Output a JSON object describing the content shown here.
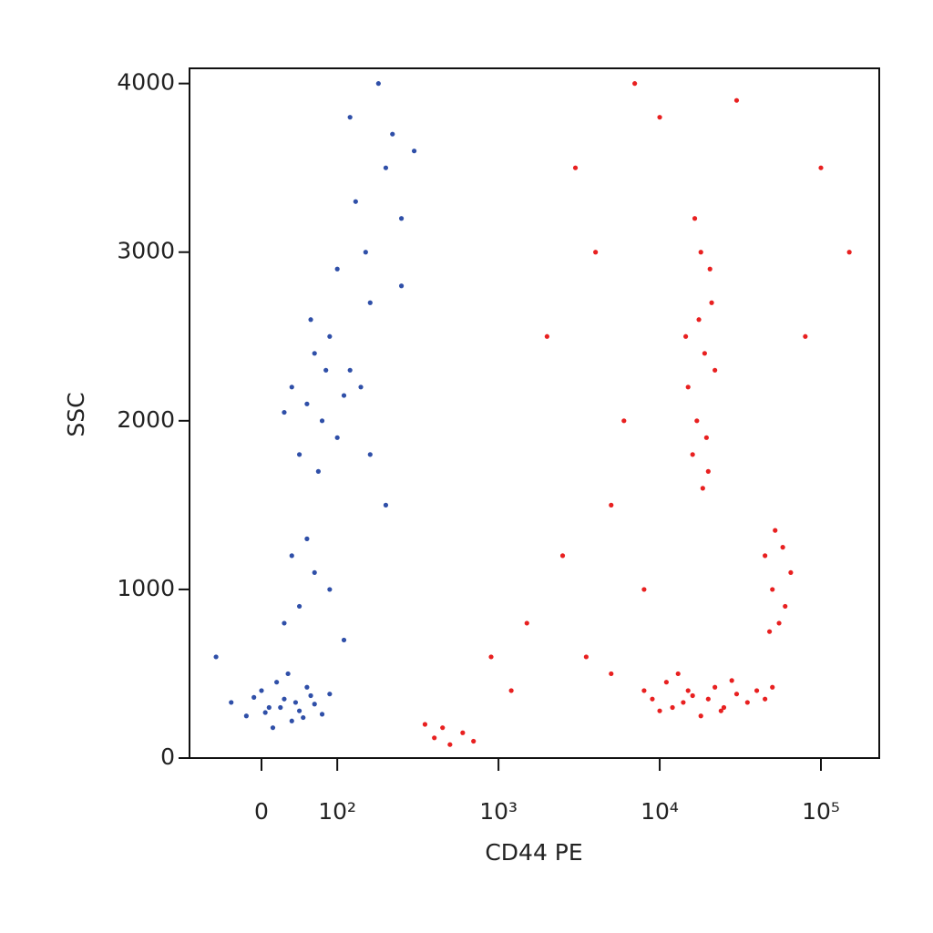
{
  "chart_data": {
    "type": "scatter",
    "x_label": "CD44 PE",
    "y_label": "SSC",
    "xscale": "biexponential",
    "xlim": [
      -95,
      230000
    ],
    "ylim": [
      0,
      4090
    ],
    "xticks": [
      0,
      {
        "value": 100,
        "label": "10²"
      },
      {
        "value": 1000,
        "label": "10³"
      },
      {
        "value": 10000,
        "label": "10⁴"
      },
      {
        "value": 100000,
        "label": "10⁵"
      }
    ],
    "yticks": [
      0,
      1000,
      2000,
      3000,
      4000
    ],
    "series": [
      {
        "color": "#2f4fa8",
        "x": [
          10,
          30,
          -20,
          50,
          70,
          0,
          40,
          20,
          -40,
          80,
          60,
          15,
          35,
          -10,
          90,
          55,
          25,
          45,
          5,
          65,
          60,
          80,
          40,
          100,
          70,
          120,
          50,
          90,
          30,
          110,
          75,
          65,
          140,
          85,
          50,
          70,
          30,
          90,
          60,
          110,
          40,
          150,
          200,
          120,
          250,
          180,
          100,
          160,
          220,
          130,
          300,
          -60,
          200,
          160,
          250
        ],
        "y": [
          300,
          350,
          250,
          280,
          320,
          400,
          220,
          450,
          330,
          260,
          420,
          180,
          500,
          360,
          380,
          240,
          300,
          330,
          270,
          370,
          2100,
          2000,
          2200,
          1900,
          2400,
          2300,
          1800,
          2500,
          2050,
          2150,
          1700,
          2600,
          2200,
          2300,
          900,
          1100,
          800,
          1000,
          1300,
          700,
          1200,
          3000,
          3500,
          3800,
          3200,
          4000,
          2900,
          2700,
          3700,
          3300,
          3600,
          600,
          1500,
          1800,
          2800
        ]
      },
      {
        "color": "#e82020",
        "x": [
          9000,
          12000,
          15000,
          20000,
          25000,
          30000,
          11000,
          18000,
          22000,
          35000,
          40000,
          14000,
          10000,
          28000,
          16000,
          45000,
          8000,
          13000,
          24000,
          50000,
          17000,
          19000,
          16000,
          21000,
          18000,
          15000,
          20000,
          17500,
          22000,
          16500,
          19500,
          14500,
          18500,
          20500,
          50000,
          55000,
          45000,
          60000,
          52000,
          48000,
          65000,
          58000,
          400,
          500,
          600,
          350,
          700,
          450,
          2000,
          3000,
          5000,
          1500,
          4000,
          6000,
          10000,
          80000,
          100000,
          3500,
          2500,
          7000,
          30000,
          1200,
          900,
          150000,
          8000,
          5000
        ],
        "y": [
          350,
          300,
          400,
          350,
          300,
          380,
          450,
          250,
          420,
          330,
          400,
          330,
          280,
          460,
          370,
          350,
          400,
          500,
          280,
          420,
          2000,
          2400,
          1800,
          2700,
          3000,
          2200,
          1700,
          2600,
          2300,
          3200,
          1900,
          2500,
          1600,
          2900,
          1000,
          800,
          1200,
          900,
          1350,
          750,
          1100,
          1250,
          120,
          80,
          150,
          200,
          100,
          180,
          2500,
          3500,
          1500,
          800,
          3000,
          2000,
          3800,
          2500,
          3500,
          600,
          1200,
          4000,
          3900,
          400,
          600,
          3000,
          1000,
          500
        ]
      }
    ]
  }
}
